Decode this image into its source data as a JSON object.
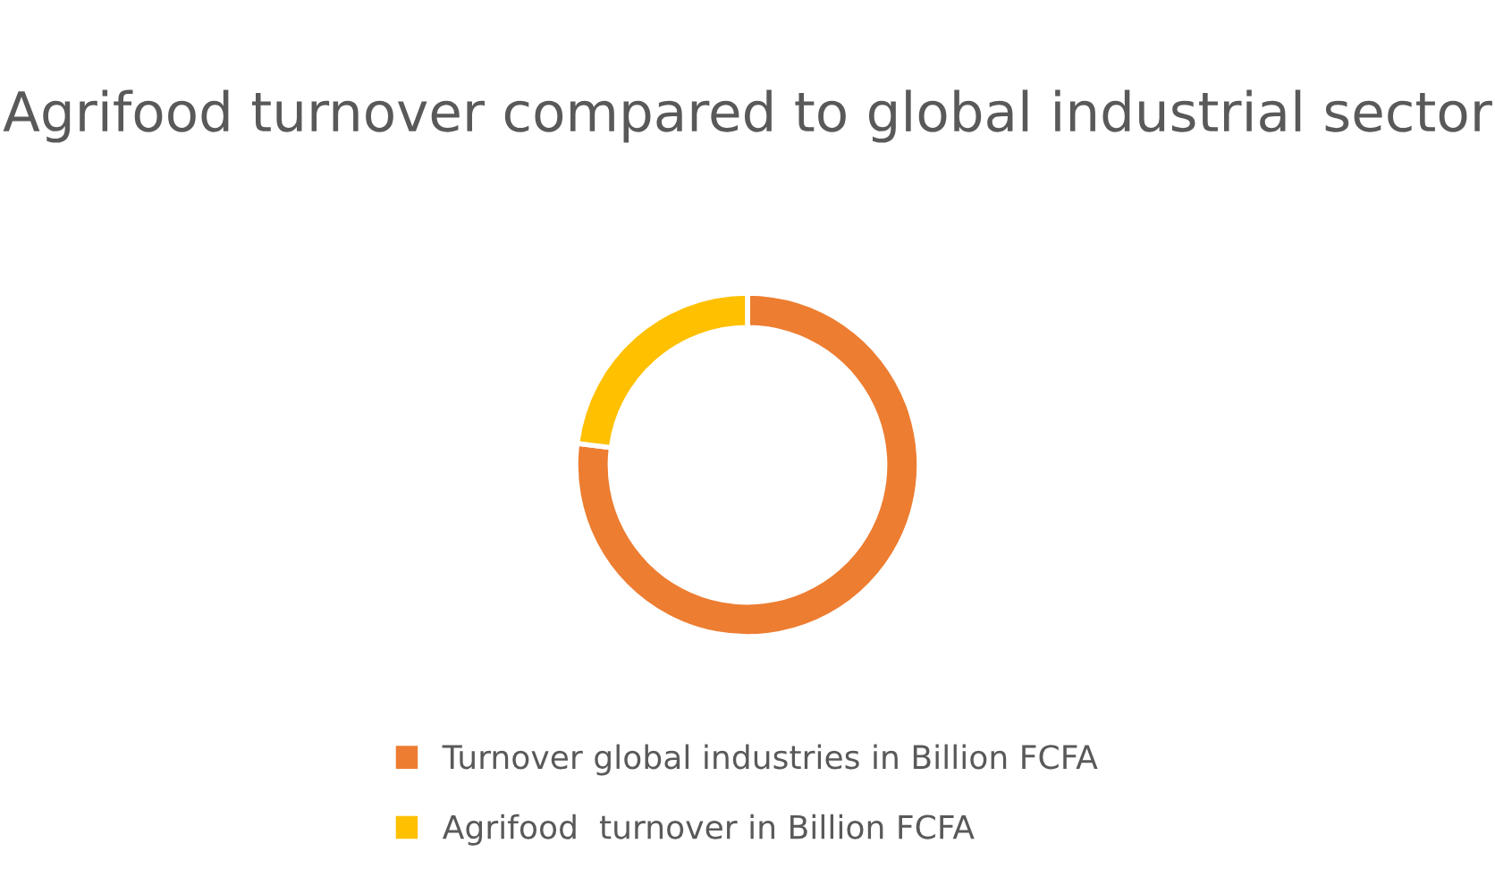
{
  "chart_data": {
    "type": "donut",
    "title": "Agrifood turnover compared to global industrial sector",
    "categories": [
      "Turnover global industries in Billion FCFA",
      "Agrifood  turnover in Billion FCFA"
    ],
    "values": [
      77,
      23
    ],
    "colors": [
      "#ed7d31",
      "#ffc000"
    ],
    "legend": "bottom"
  }
}
